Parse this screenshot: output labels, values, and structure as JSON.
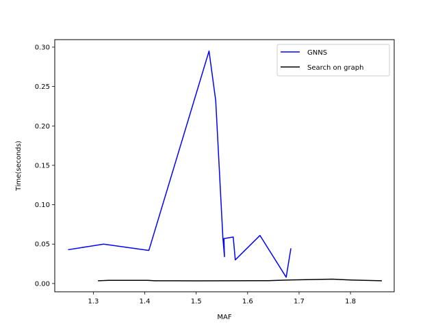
{
  "chart_data": {
    "type": "line",
    "title": "",
    "xlabel": "MAF",
    "ylabel": "Time(seconds)",
    "xlim": [
      1.225,
      1.885
    ],
    "ylim": [
      -0.0105,
      0.3095
    ],
    "xticks": [
      1.3,
      1.4,
      1.5,
      1.6,
      1.7,
      1.8
    ],
    "xtick_labels": [
      "1.3",
      "1.4",
      "1.5",
      "1.6",
      "1.7",
      "1.8"
    ],
    "yticks": [
      0.0,
      0.05,
      0.1,
      0.15,
      0.2,
      0.25,
      0.3
    ],
    "ytick_labels": [
      "0.00",
      "0.05",
      "0.10",
      "0.15",
      "0.20",
      "0.25",
      "0.30"
    ],
    "grid": false,
    "legend_position": "top-right",
    "series": [
      {
        "name": "GNNS",
        "color": "#0000ff",
        "x": [
          1.252,
          1.32,
          1.408,
          1.525,
          1.538,
          1.552,
          1.555,
          1.554,
          1.572,
          1.576,
          1.624,
          1.675,
          1.684
        ],
        "y": [
          0.043,
          0.05,
          0.042,
          0.295,
          0.232,
          0.057,
          0.034,
          0.057,
          0.059,
          0.03,
          0.061,
          0.008,
          0.044
        ]
      },
      {
        "name": "Search on graph",
        "color": "#000000",
        "x": [
          1.31,
          1.33,
          1.405,
          1.42,
          1.5,
          1.56,
          1.64,
          1.68,
          1.765,
          1.8,
          1.86
        ],
        "y": [
          0.0035,
          0.004,
          0.004,
          0.0035,
          0.0034,
          0.0035,
          0.0036,
          0.0045,
          0.0055,
          0.0045,
          0.0035
        ]
      }
    ]
  }
}
